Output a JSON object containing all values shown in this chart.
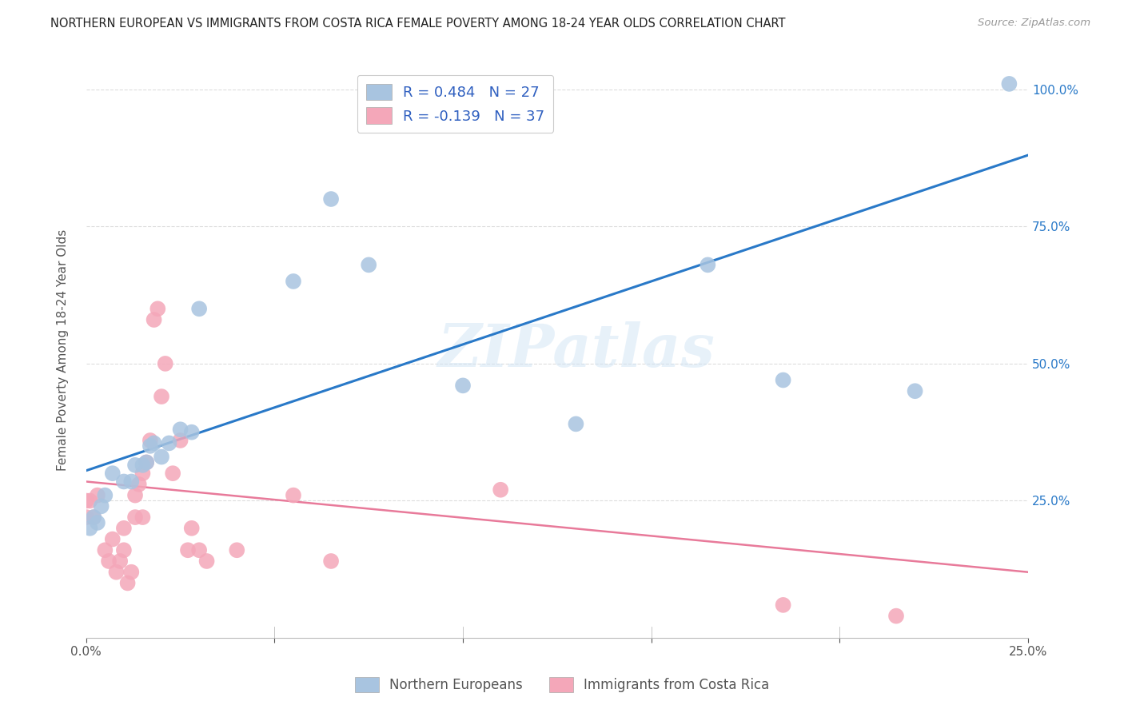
{
  "title": "NORTHERN EUROPEAN VS IMMIGRANTS FROM COSTA RICA FEMALE POVERTY AMONG 18-24 YEAR OLDS CORRELATION CHART",
  "source": "Source: ZipAtlas.com",
  "ylabel": "Female Poverty Among 18-24 Year Olds",
  "xlim": [
    0.0,
    0.25
  ],
  "ylim": [
    0.0,
    1.05
  ],
  "xtick_labels": [
    "0.0%",
    "",
    "",
    "",
    "",
    "25.0%"
  ],
  "xtick_vals": [
    0.0,
    0.05,
    0.1,
    0.15,
    0.2,
    0.25
  ],
  "ytick_labels": [
    "25.0%",
    "50.0%",
    "75.0%",
    "100.0%"
  ],
  "ytick_vals": [
    0.25,
    0.5,
    0.75,
    1.0
  ],
  "blue_R": 0.484,
  "blue_N": 27,
  "pink_R": -0.139,
  "pink_N": 37,
  "blue_color": "#a8c4e0",
  "pink_color": "#f4a7b9",
  "blue_line_color": "#2979c8",
  "pink_line_color": "#e87a9a",
  "legend_text_color": "#3060c0",
  "background_color": "#ffffff",
  "watermark": "ZIPatlas",
  "blue_x": [
    0.001,
    0.002,
    0.003,
    0.004,
    0.005,
    0.007,
    0.01,
    0.012,
    0.013,
    0.015,
    0.016,
    0.017,
    0.018,
    0.02,
    0.022,
    0.025,
    0.028,
    0.03,
    0.055,
    0.065,
    0.075,
    0.1,
    0.13,
    0.165,
    0.185,
    0.22,
    0.245
  ],
  "blue_y": [
    0.2,
    0.22,
    0.21,
    0.24,
    0.26,
    0.3,
    0.285,
    0.285,
    0.315,
    0.315,
    0.32,
    0.35,
    0.355,
    0.33,
    0.355,
    0.38,
    0.375,
    0.6,
    0.65,
    0.8,
    0.68,
    0.46,
    0.39,
    0.68,
    0.47,
    0.45,
    1.01
  ],
  "pink_x": [
    0.0,
    0.0,
    0.001,
    0.002,
    0.003,
    0.005,
    0.006,
    0.007,
    0.008,
    0.009,
    0.01,
    0.01,
    0.011,
    0.012,
    0.013,
    0.013,
    0.014,
    0.015,
    0.015,
    0.016,
    0.017,
    0.018,
    0.019,
    0.02,
    0.021,
    0.023,
    0.025,
    0.027,
    0.028,
    0.03,
    0.032,
    0.04,
    0.055,
    0.065,
    0.11,
    0.185,
    0.215
  ],
  "pink_y": [
    0.22,
    0.25,
    0.25,
    0.22,
    0.26,
    0.16,
    0.14,
    0.18,
    0.12,
    0.14,
    0.16,
    0.2,
    0.1,
    0.12,
    0.22,
    0.26,
    0.28,
    0.3,
    0.22,
    0.32,
    0.36,
    0.58,
    0.6,
    0.44,
    0.5,
    0.3,
    0.36,
    0.16,
    0.2,
    0.16,
    0.14,
    0.16,
    0.26,
    0.14,
    0.27,
    0.06,
    0.04
  ],
  "blue_line_x0": 0.0,
  "blue_line_y0": 0.305,
  "blue_line_x1": 0.25,
  "blue_line_y1": 0.88,
  "pink_line_x0": 0.0,
  "pink_line_y0": 0.285,
  "pink_line_x1": 0.25,
  "pink_line_y1": 0.12,
  "grid_color": "#dddddd"
}
